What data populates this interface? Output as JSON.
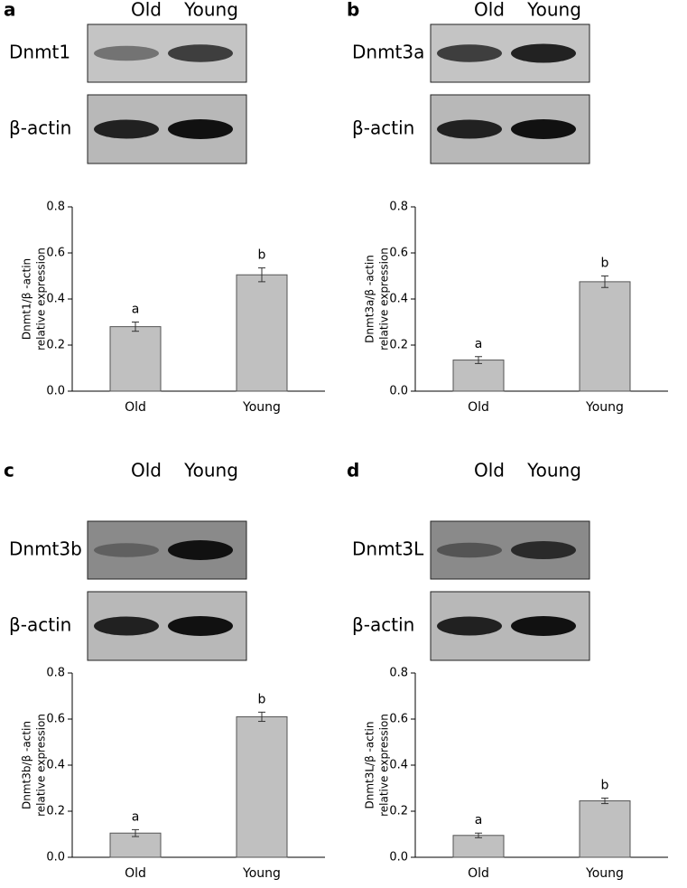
{
  "chart_data": [
    {
      "type": "bar",
      "panel": "a",
      "blot": {
        "lanes": [
          "Old",
          "Young"
        ],
        "rows": [
          "Dnmt1",
          "β-actin"
        ]
      },
      "y_label": [
        "Dnmt1/β -actin",
        "relative expression"
      ],
      "categories": [
        "Old",
        "Young"
      ],
      "values": [
        0.28,
        0.505
      ],
      "errors": [
        0.02,
        0.03
      ],
      "annotations": [
        "a",
        "b"
      ],
      "color": "#c0c0c0",
      "ylim": [
        0,
        0.8
      ],
      "yticks": [
        {
          "value": 0,
          "label": "0.0"
        },
        0.2,
        0.4,
        0.6,
        0.8
      ]
    },
    {
      "type": "bar",
      "panel": "b",
      "blot": {
        "lanes": [
          "Old",
          "Young"
        ],
        "rows": [
          "Dnmt3a",
          "β-actin"
        ]
      },
      "y_label": [
        "Dnmt3a/β -actin",
        "relative expression"
      ],
      "categories": [
        "Old",
        "Young"
      ],
      "values": [
        0.135,
        0.475
      ],
      "errors": [
        0.015,
        0.025
      ],
      "annotations": [
        "a",
        "b"
      ],
      "color": "#c0c0c0",
      "ylim": [
        0,
        0.8
      ],
      "yticks": [
        {
          "value": 0,
          "label": "0.0"
        },
        0.2,
        0.4,
        0.6,
        0.8
      ]
    },
    {
      "type": "bar",
      "panel": "c",
      "blot": {
        "lanes": [
          "Old",
          "Young"
        ],
        "rows": [
          "Dnmt3b",
          "β-actin"
        ]
      },
      "y_label": [
        "Dnmt3b/β -actin",
        "relative expression"
      ],
      "categories": [
        "Old",
        "Young"
      ],
      "values": [
        0.105,
        0.61
      ],
      "errors": [
        0.015,
        0.02
      ],
      "annotations": [
        "a",
        "b"
      ],
      "color": "#c0c0c0",
      "ylim": [
        0,
        0.8
      ],
      "yticks": [
        {
          "value": 0,
          "label": "0.0"
        },
        0.2,
        0.4,
        0.6,
        0.8
      ]
    },
    {
      "type": "bar",
      "panel": "d",
      "blot": {
        "lanes": [
          "Old",
          "Young"
        ],
        "rows": [
          "Dnmt3L",
          "β-actin"
        ]
      },
      "y_label": [
        "Dnmt3L/β -actin",
        "relative expression"
      ],
      "categories": [
        "Old",
        "Young"
      ],
      "values": [
        0.095,
        0.245
      ],
      "errors": [
        0.01,
        0.012
      ],
      "annotations": [
        "a",
        "b"
      ],
      "color": "#c0c0c0",
      "ylim": [
        0,
        0.8
      ],
      "yticks": [
        {
          "value": 0,
          "label": "0.0"
        },
        0.2,
        0.4,
        0.6,
        0.8
      ]
    }
  ]
}
